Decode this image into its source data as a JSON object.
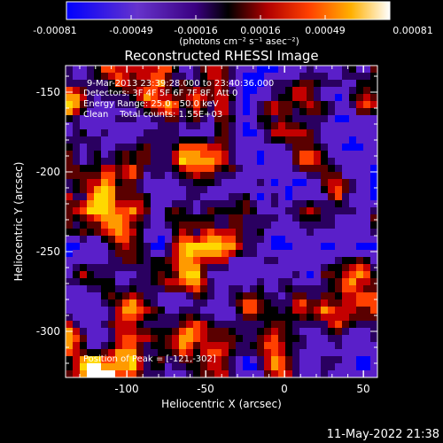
{
  "colorbar": {
    "tick_labels": [
      "-0.00081",
      "-0.00049",
      "-0.00016",
      "0.00016",
      "0.00049",
      "0.00081"
    ],
    "units_label": "(photons cm⁻² s⁻¹ asec⁻²)",
    "colors": [
      "#0000ff",
      "#5a1fc9",
      "#6a2aa8",
      "#2a0060",
      "#000000",
      "#5a0000",
      "#c40000",
      "#ff4000",
      "#ff9a00",
      "#ffd800",
      "#ffffff"
    ]
  },
  "image": {
    "title": "Reconstructed RHESSI Image",
    "x_axis_label": "Heliocentric X (arcsec)",
    "y_axis_label": "Heliocentric Y (arcsec)",
    "x_tick_labels": [
      "-100",
      "-50",
      "0",
      "50"
    ],
    "y_tick_labels": [
      "-150",
      "-200",
      "-250",
      "-300"
    ],
    "annotations": [
      "9-Mar-2013 23:39:28.000 to 23:40:36.000",
      "Detectors: 3F 4F 5F 6F 7F 8F, Att 0",
      "Energy Range: 25.0 - 50.0 keV",
      "Clean    Total counts: 1.55E+03"
    ],
    "peak_label": "Position of Peak = [-121,-302]"
  },
  "footer": {
    "timestamp": "11-May-2022 21:38"
  }
}
